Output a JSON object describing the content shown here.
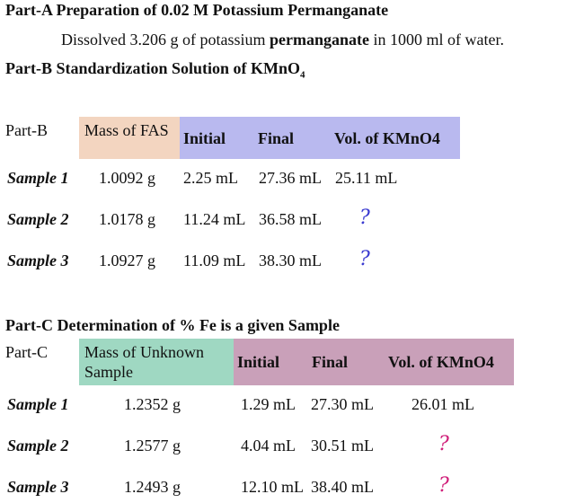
{
  "part_a": {
    "title": "Part-A Preparation of 0.02 M Potassium Permanganate",
    "text_1": "Dissolved 3.206 g of potassium ",
    "text_bold": "permanganate",
    "text_2": " in 1000 ml of water."
  },
  "part_b": {
    "title": "Part-B Standardization Solution of KMnO",
    "title_sub": "4",
    "table": {
      "header": [
        "Part-B",
        "Mass of FAS",
        "Initial",
        "Final",
        "Vol. of KMnO4"
      ],
      "rows": [
        [
          "Sample 1",
          "1.0092 g",
          "2.25 mL",
          "27.36 mL",
          "25.11 mL"
        ],
        [
          "Sample 2",
          "1.0178 g",
          "11.24 mL",
          "36.58 mL",
          "?"
        ],
        [
          "Sample 3",
          "1.0927 g",
          "11.09 mL",
          "38.30 mL",
          "?"
        ]
      ]
    }
  },
  "part_c": {
    "title": "Part-C Determination of % Fe is a given Sample",
    "table": {
      "header": [
        "Part-C",
        "Mass of Unknown Sample",
        "Initial",
        "Final",
        "Vol. of KMnO4"
      ],
      "rows": [
        [
          "Sample 1",
          "1.2352 g",
          "1.29 mL",
          "27.30 mL",
          "26.01 mL"
        ],
        [
          "Sample 2",
          "1.2577 g",
          "4.04 mL",
          "30.51 mL",
          "?"
        ],
        [
          "Sample 3",
          "1.2493 g",
          "12.10 mL",
          "38.40 mL",
          "?"
        ]
      ]
    }
  }
}
